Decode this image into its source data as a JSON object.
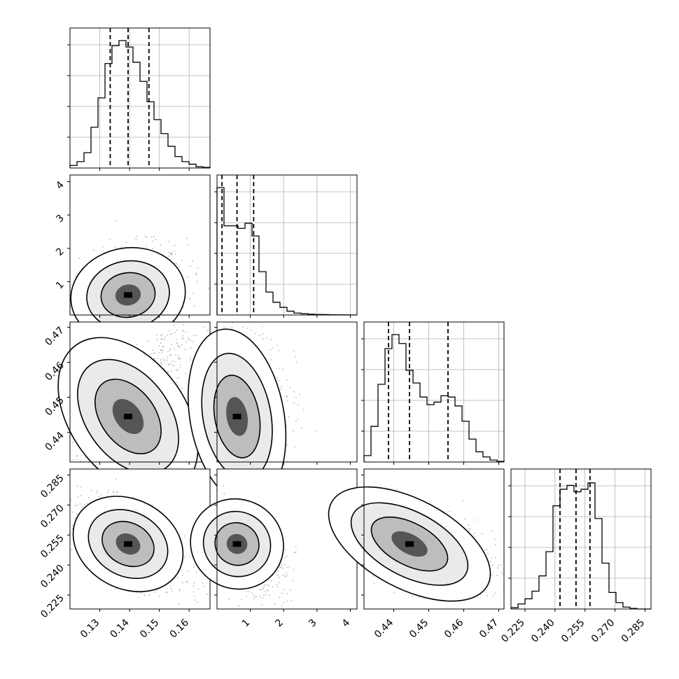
{
  "chart_data": {
    "type": "corner",
    "variables": [
      {
        "range": [
          0.12,
          0.167
        ],
        "ticks": [
          0.13,
          0.14,
          0.15,
          0.16
        ],
        "tick_labels": [
          "0.13",
          "0.14",
          "0.15",
          "0.16"
        ],
        "quantiles": [
          0.1335,
          0.1395,
          0.1465
        ]
      },
      {
        "range": [
          0.0,
          4.2
        ],
        "ticks": [
          1,
          2,
          3,
          4
        ],
        "tick_labels": [
          "1",
          "2",
          "3",
          "4"
        ],
        "quantiles": [
          0.15,
          0.6,
          1.1
        ]
      },
      {
        "range": [
          0.4315,
          0.4715
        ],
        "ticks": [
          0.44,
          0.45,
          0.46,
          0.47
        ],
        "tick_labels": [
          "0.44",
          "0.45",
          "0.46",
          "0.47"
        ],
        "quantiles": [
          0.4385,
          0.4445,
          0.4555
        ]
      },
      {
        "range": [
          0.218,
          0.288
        ],
        "ticks": [
          0.225,
          0.24,
          0.255,
          0.27,
          0.285
        ],
        "tick_labels": [
          "0.225",
          "0.240",
          "0.255",
          "0.270",
          "0.285"
        ],
        "quantiles": [
          0.2425,
          0.2505,
          0.2575
        ]
      }
    ],
    "histograms": [
      [
        0.02,
        0.05,
        0.12,
        0.32,
        0.55,
        0.82,
        0.96,
        1.0,
        0.95,
        0.83,
        0.68,
        0.52,
        0.38,
        0.27,
        0.17,
        0.09,
        0.05,
        0.03,
        0.01,
        0.005
      ],
      [
        1.0,
        0.7,
        0.7,
        0.68,
        0.72,
        0.62,
        0.34,
        0.18,
        0.1,
        0.06,
        0.03,
        0.015,
        0.01,
        0.006,
        0.004,
        0.003,
        0.002,
        0.001,
        0.001,
        0.0
      ],
      [
        0.05,
        0.28,
        0.61,
        0.89,
        1.0,
        0.93,
        0.72,
        0.62,
        0.51,
        0.45,
        0.47,
        0.52,
        0.51,
        0.44,
        0.32,
        0.18,
        0.08,
        0.04,
        0.015,
        0.005
      ],
      [
        0.01,
        0.04,
        0.08,
        0.14,
        0.26,
        0.45,
        0.81,
        0.94,
        0.97,
        0.92,
        0.94,
        0.99,
        0.71,
        0.36,
        0.13,
        0.05,
        0.015,
        0.005,
        0.0,
        0.0
      ]
    ],
    "grid": true
  }
}
